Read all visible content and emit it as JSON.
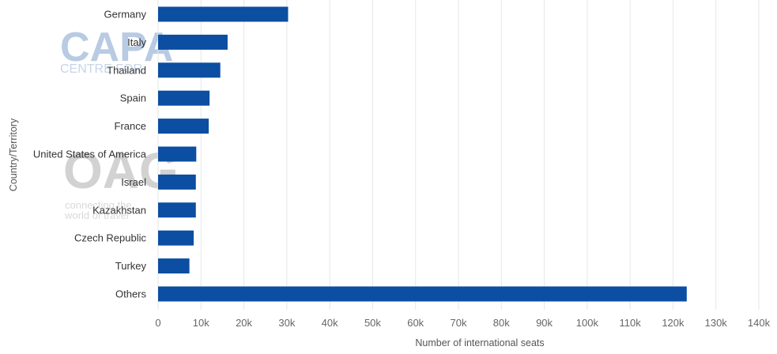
{
  "chart_data": {
    "type": "bar",
    "orientation": "horizontal",
    "categories": [
      "Germany",
      "Italy",
      "Thailand",
      "Spain",
      "France",
      "United States of America",
      "Israel",
      "Kazakhstan",
      "Czech Republic",
      "Turkey",
      "Others"
    ],
    "values": [
      30300,
      16200,
      14500,
      12000,
      11800,
      8900,
      8800,
      8800,
      8300,
      7300,
      123200
    ],
    "xlabel": "Number of international seats",
    "ylabel": "Country/Territory",
    "xlim": [
      0,
      140000
    ],
    "x_ticks": [
      0,
      10000,
      20000,
      30000,
      40000,
      50000,
      60000,
      70000,
      80000,
      90000,
      100000,
      110000,
      120000,
      130000,
      140000
    ],
    "x_tick_labels": [
      "0",
      "10k",
      "20k",
      "30k",
      "40k",
      "50k",
      "60k",
      "70k",
      "80k",
      "90k",
      "100k",
      "110k",
      "120k",
      "130k",
      "140k"
    ],
    "grid": "vertical",
    "bar_color": "#0b4ea2"
  },
  "watermarks": {
    "capa_main": "CAPA",
    "capa_sub": "CENTRE FOR",
    "oag_main": "OAG",
    "oag_line1": "connecting the",
    "oag_line2": "world of travel"
  }
}
